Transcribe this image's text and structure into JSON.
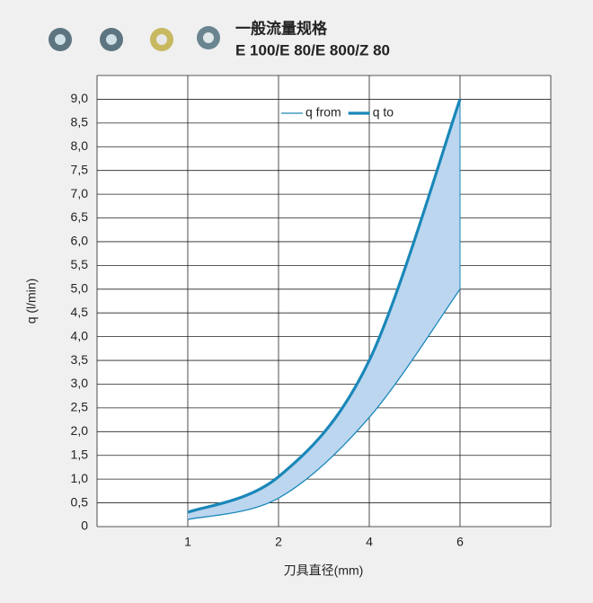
{
  "chart_data": {
    "type": "line",
    "title": "一般流量规格",
    "subtitle": "E 100/E 80/E 800/Z 80",
    "x_label": "刀具直径(mm)",
    "y_label": "q (l/min)",
    "categories": [
      "1",
      "2",
      "4",
      "6"
    ],
    "series": [
      {
        "name": "q from",
        "color": "#1a87b9",
        "values": [
          0.15,
          0.6,
          2.3,
          5.0
        ]
      },
      {
        "name": "q to",
        "color": "#1a87b9",
        "values": [
          0.3,
          1.05,
          3.5,
          9.0
        ]
      }
    ],
    "fill_color": "#bcd6ef",
    "ylim": [
      0,
      9.5
    ],
    "yticks": [
      0,
      {
        "value": 0.5,
        "label": "0,5"
      },
      {
        "value": 1,
        "label": "1,0"
      },
      {
        "value": 1.5,
        "label": "1,5"
      },
      {
        "value": 2,
        "label": "2,0"
      },
      {
        "value": 2.5,
        "label": "2,5"
      },
      {
        "value": 3,
        "label": "3,0"
      },
      {
        "value": 3.5,
        "label": "3,5"
      },
      {
        "value": 4,
        "label": "4,0"
      },
      {
        "value": 4.5,
        "label": "4,5"
      },
      {
        "value": 5,
        "label": "5,0"
      },
      {
        "value": 5.5,
        "label": "5,5"
      },
      {
        "value": 6,
        "label": "6,0"
      },
      {
        "value": 6.5,
        "label": "6,5"
      },
      {
        "value": 7,
        "label": "7,0"
      },
      {
        "value": 7.5,
        "label": "7,5"
      },
      {
        "value": 8,
        "label": "8,0"
      },
      {
        "value": 8.5,
        "label": "8,5"
      },
      {
        "value": 9,
        "label": "9,0"
      }
    ],
    "grid": true,
    "legend": "top-right"
  }
}
